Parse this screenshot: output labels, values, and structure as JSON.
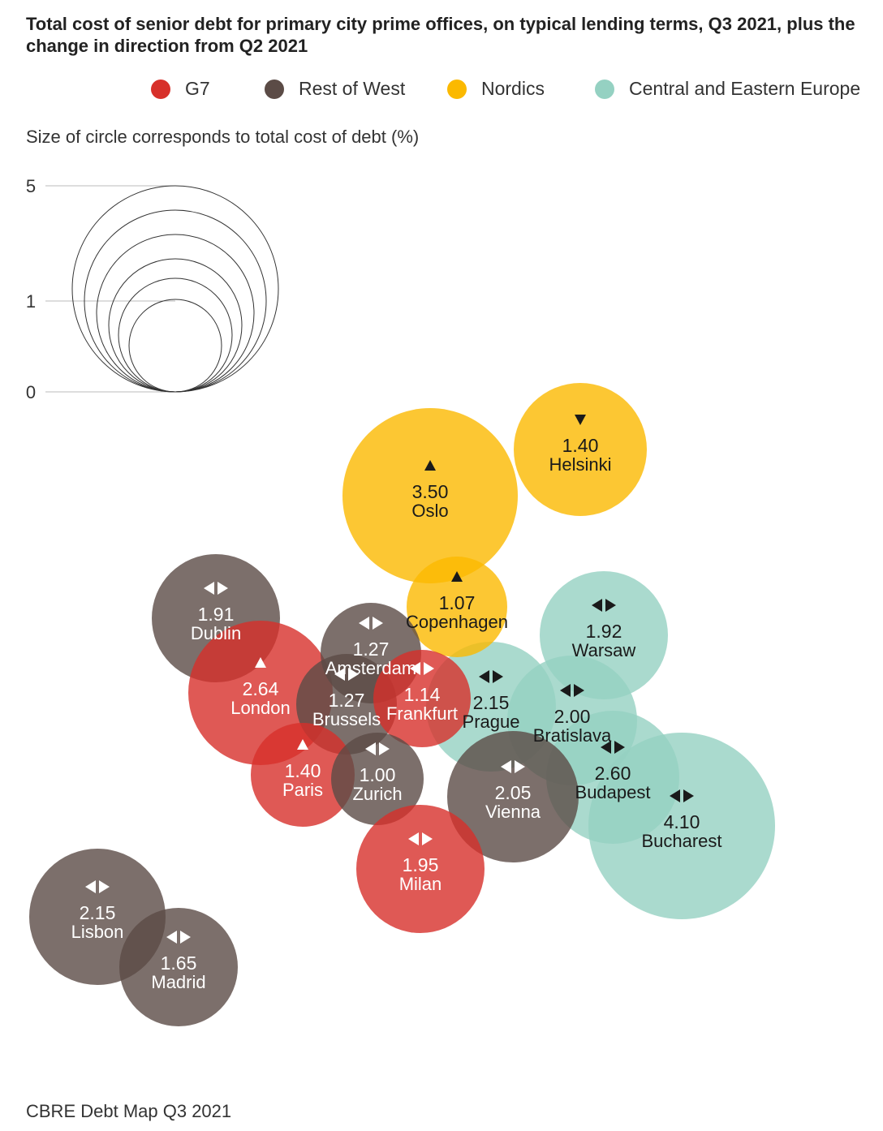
{
  "chart_data": {
    "type": "bubble-map",
    "title": "Total cost of senior debt for primary city prime offices, on typical lending terms, Q3 2021, plus the change in direction from Q2 2021",
    "size_note": "Size of circle corresponds to total cost of debt (%)",
    "size_scale_labels": [
      "5",
      "1",
      "0"
    ],
    "source": "CBRE Debt Map Q3 2021",
    "legend": [
      {
        "name": "G7",
        "color": "#d7302a"
      },
      {
        "name": "Rest of West",
        "color": "#5b4b46"
      },
      {
        "name": "Nordics",
        "color": "#fbb900"
      },
      {
        "name": "Central and Eastern Europe",
        "color": "#95d1c2"
      }
    ],
    "points": [
      {
        "city": "Oslo",
        "value": "3.50",
        "group": "Nordics",
        "change": "up"
      },
      {
        "city": "Helsinki",
        "value": "1.40",
        "group": "Nordics",
        "change": "down"
      },
      {
        "city": "Bucharest",
        "value": "4.10",
        "group": "Central and Eastern Europe",
        "change": "flat"
      },
      {
        "city": "Warsaw",
        "value": "1.92",
        "group": "Central and Eastern Europe",
        "change": "flat"
      },
      {
        "city": "Prague",
        "value": "2.15",
        "group": "Central and Eastern Europe",
        "change": "flat"
      },
      {
        "city": "Budapest",
        "value": "2.60",
        "group": "Central and Eastern Europe",
        "change": "flat"
      },
      {
        "city": "Bratislava",
        "value": "2.00",
        "group": "Central and Eastern Europe",
        "change": "flat"
      },
      {
        "city": "Copenhagen",
        "value": "1.07",
        "group": "Nordics",
        "change": "up"
      },
      {
        "city": "Dublin",
        "value": "1.91",
        "group": "Rest of West",
        "change": "flat"
      },
      {
        "city": "London",
        "value": "2.64",
        "group": "G7",
        "change": "up"
      },
      {
        "city": "Amsterdam",
        "value": "1.27",
        "group": "Rest of West",
        "change": "flat"
      },
      {
        "city": "Brussels",
        "value": "1.27",
        "group": "Rest of West",
        "change": "flat"
      },
      {
        "city": "Frankfurt",
        "value": "1.14",
        "group": "G7",
        "change": "flat"
      },
      {
        "city": "Paris",
        "value": "1.40",
        "group": "G7",
        "change": "up"
      },
      {
        "city": "Zurich",
        "value": "1.00",
        "group": "Rest of West",
        "change": "flat"
      },
      {
        "city": "Vienna",
        "value": "2.05",
        "group": "Rest of West",
        "change": "flat"
      },
      {
        "city": "Milan",
        "value": "1.95",
        "group": "G7",
        "change": "flat"
      },
      {
        "city": "Lisbon",
        "value": "2.15",
        "group": "Rest of West",
        "change": "flat"
      },
      {
        "city": "Madrid",
        "value": "1.65",
        "group": "Rest of West",
        "change": "flat"
      }
    ]
  }
}
